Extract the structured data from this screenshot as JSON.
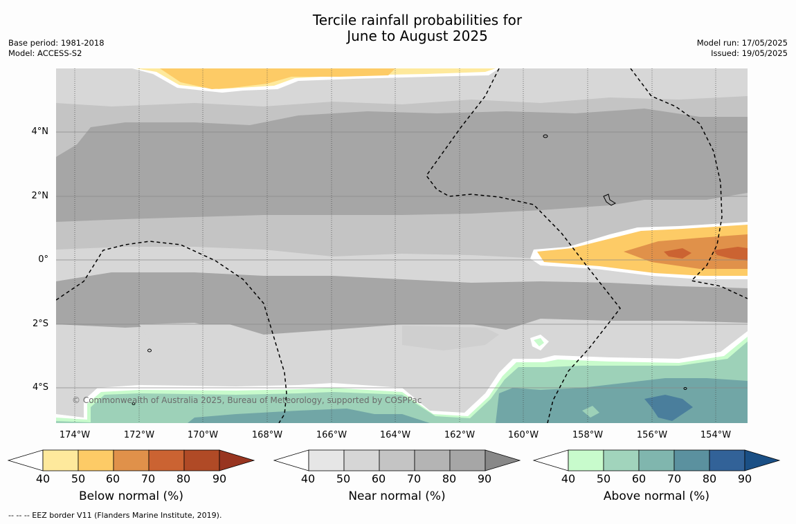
{
  "title": {
    "line1": "Tercile rainfall probabilities for",
    "line2": "June to August 2025"
  },
  "meta_left": {
    "base_period": "Base period: 1981-2018",
    "model": "Model: ACCESS-S2"
  },
  "meta_right": {
    "model_run": "Model run: 17/05/2025",
    "issued": "Issued: 19/05/2025"
  },
  "map": {
    "lat_labels": [
      "4°N",
      "2°N",
      "0°",
      "2°S",
      "4°S"
    ],
    "lon_labels": [
      "174°W",
      "172°W",
      "170°W",
      "168°W",
      "166°W",
      "164°W",
      "162°W",
      "160°W",
      "158°W",
      "156°W",
      "154°W"
    ],
    "copyright": "© Commonwealth of Australia 2025, Bureau of Meteorology, supported by COSPPac",
    "colors": {
      "near_normal_bands": [
        "#d7d7d7",
        "#c4c4c4",
        "#a6a6a6"
      ],
      "below_bands": [
        "#fdcb66",
        "#e0914a",
        "#cb6332"
      ],
      "above_bands": [
        "#c8fbcc",
        "#9dd1b8",
        "#71a6a6",
        "#4a7e9c"
      ]
    }
  },
  "colorbars": [
    {
      "label": "Below normal (%)",
      "ticks": [
        "40",
        "50",
        "60",
        "70",
        "80",
        "90"
      ],
      "colors": [
        "#ffffff",
        "#fee99c",
        "#fdcb66",
        "#e0914a",
        "#cb6332",
        "#b04a26",
        "#983520"
      ]
    },
    {
      "label": "Near normal (%)",
      "ticks": [
        "40",
        "50",
        "60",
        "70",
        "80",
        "90"
      ],
      "colors": [
        "#ffffff",
        "#e6e6e6",
        "#d6d6d6",
        "#c4c4c4",
        "#b4b4b4",
        "#a6a6a6",
        "#888888"
      ]
    },
    {
      "label": "Above normal (%)",
      "ticks": [
        "40",
        "50",
        "60",
        "70",
        "80",
        "90"
      ],
      "colors": [
        "#ffffff",
        "#c8fbcc",
        "#a1d4bc",
        "#80b6ae",
        "#5b919f",
        "#326298",
        "#1a4f85"
      ]
    }
  ],
  "footnote": "--  --  -- EEZ border V11 (Flanders Marine Institute, 2019)."
}
